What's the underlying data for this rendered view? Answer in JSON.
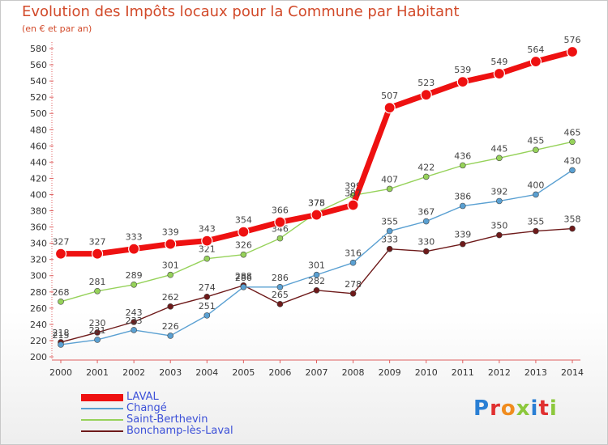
{
  "header": {
    "title": "Evolution des Impôts locaux pour la Commune par Habitant",
    "subtitle": "(en € et par an)"
  },
  "logo": {
    "text": "Proxiti",
    "letter_colors": [
      "#2a7fd4",
      "#e03030",
      "#f08c1e",
      "#8cc83c",
      "#2a7fd4",
      "#e03030",
      "#8cc83c"
    ]
  },
  "chart_data": {
    "type": "line",
    "title": "Evolution des Impôts locaux pour la Commune par Habitant",
    "subtitle": "(en € et par an)",
    "xlabel": "",
    "ylabel": "",
    "x": [
      2000,
      2001,
      2002,
      2003,
      2004,
      2005,
      2006,
      2007,
      2008,
      2009,
      2010,
      2011,
      2012,
      2013,
      2014
    ],
    "ylim": [
      200,
      580
    ],
    "yticks": [
      200,
      220,
      240,
      260,
      280,
      300,
      320,
      340,
      360,
      380,
      400,
      420,
      440,
      460,
      480,
      500,
      520,
      540,
      560,
      580
    ],
    "grid": false,
    "legend_position": "bottom-left",
    "series": [
      {
        "name": "Bonchamp-lès-Laval",
        "color": "#6e1a1a",
        "emphasis": false,
        "values": [
          218,
          230,
          243,
          262,
          274,
          288,
          265,
          282,
          278,
          333,
          330,
          339,
          350,
          355,
          358
        ]
      },
      {
        "name": "Changé",
        "color": "#5aa0d2",
        "emphasis": false,
        "values": [
          215,
          221,
          233,
          226,
          251,
          286,
          286,
          301,
          316,
          355,
          367,
          386,
          392,
          400,
          430
        ]
      },
      {
        "name": "Saint-Berthevin",
        "color": "#96d25a",
        "emphasis": false,
        "values": [
          268,
          281,
          289,
          301,
          321,
          326,
          346,
          378,
          399,
          407,
          422,
          436,
          445,
          455,
          465
        ]
      },
      {
        "name": "LAVAL",
        "color": "#ee1111",
        "emphasis": true,
        "values": [
          327,
          327,
          333,
          339,
          343,
          354,
          366,
          375,
          387,
          507,
          523,
          539,
          549,
          564,
          576
        ]
      }
    ],
    "legend": [
      "LAVAL",
      "Changé",
      "Saint-Berthevin",
      "Bonchamp-lès-Laval"
    ]
  }
}
